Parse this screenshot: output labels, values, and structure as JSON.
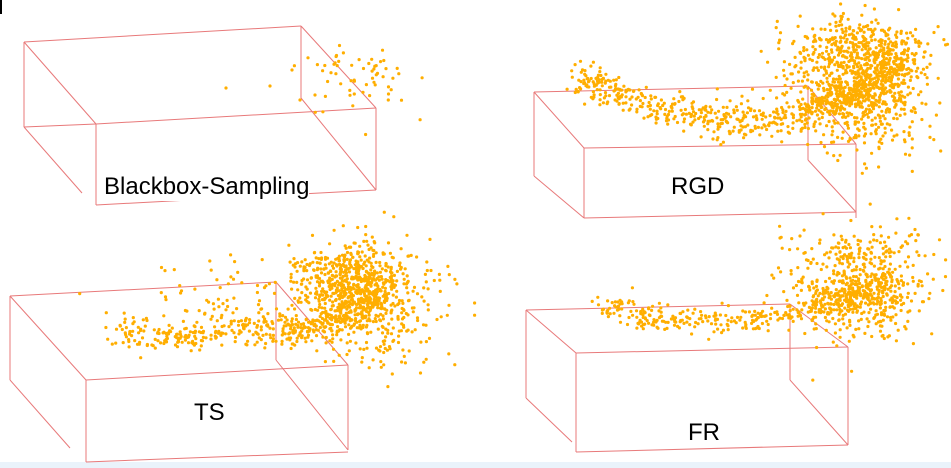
{
  "panels": [
    {
      "label": "Blackbox-Sampling",
      "density": "sparse"
    },
    {
      "label": "RGD",
      "density": "dense"
    },
    {
      "label": "TS",
      "density": "dense"
    },
    {
      "label": "FR",
      "density": "medium"
    }
  ],
  "colors": {
    "box_edge": "#e8797a",
    "point": "#ffae00",
    "background": "#ffffff"
  }
}
